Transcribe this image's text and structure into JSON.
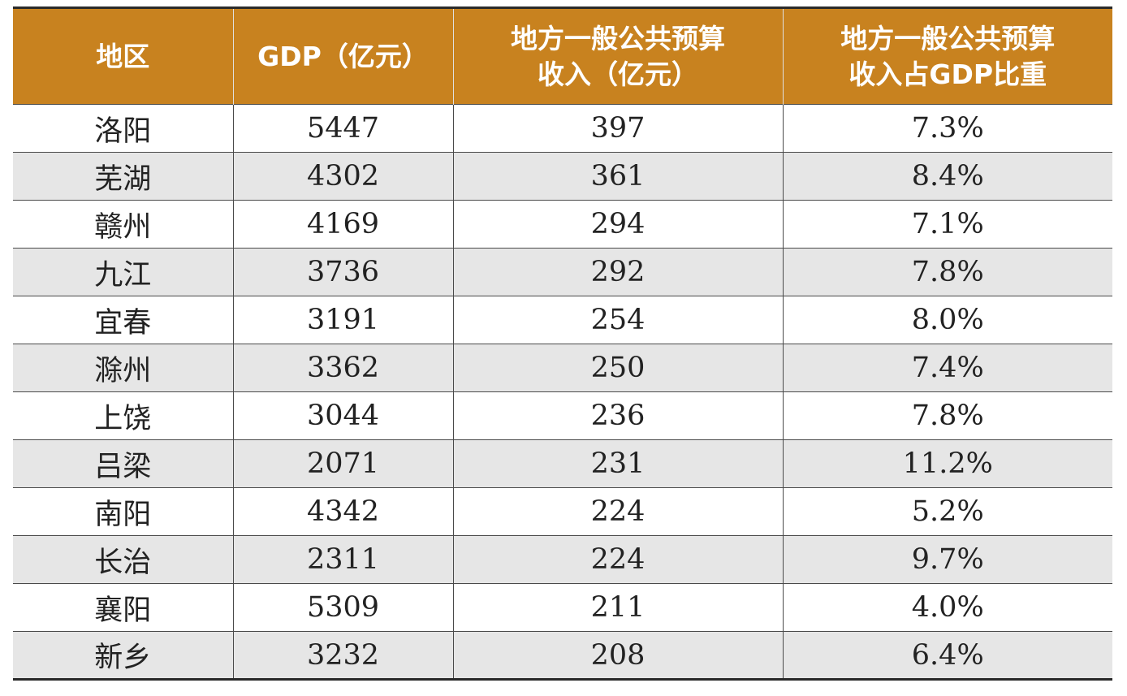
{
  "table": {
    "headers": [
      [
        "地区"
      ],
      [
        "GDP（亿元）"
      ],
      [
        "地方一般公共预算",
        "收入（亿元）"
      ],
      [
        "地方一般公共预算",
        "收入占GDP比重"
      ]
    ],
    "rows": [
      [
        "洛阳",
        "5447",
        "397",
        "7.3%"
      ],
      [
        "芜湖",
        "4302",
        "361",
        "8.4%"
      ],
      [
        "赣州",
        "4169",
        "294",
        "7.1%"
      ],
      [
        "九江",
        "3736",
        "292",
        "7.8%"
      ],
      [
        "宜春",
        "3191",
        "254",
        "8.0%"
      ],
      [
        "滁州",
        "3362",
        "250",
        "7.4%"
      ],
      [
        "上饶",
        "3044",
        "236",
        "7.8%"
      ],
      [
        "吕梁",
        "2071",
        "231",
        "11.2%"
      ],
      [
        "南阳",
        "4342",
        "224",
        "5.2%"
      ],
      [
        "长治",
        "2311",
        "224",
        "9.7%"
      ],
      [
        "襄阳",
        "5309",
        "211",
        "4.0%"
      ],
      [
        "新乡",
        "3232",
        "208",
        "6.4%"
      ]
    ]
  },
  "colors": {
    "header_bg": "#c8821f",
    "header_text": "#ffffff",
    "stripe": "#e6e6e6"
  }
}
